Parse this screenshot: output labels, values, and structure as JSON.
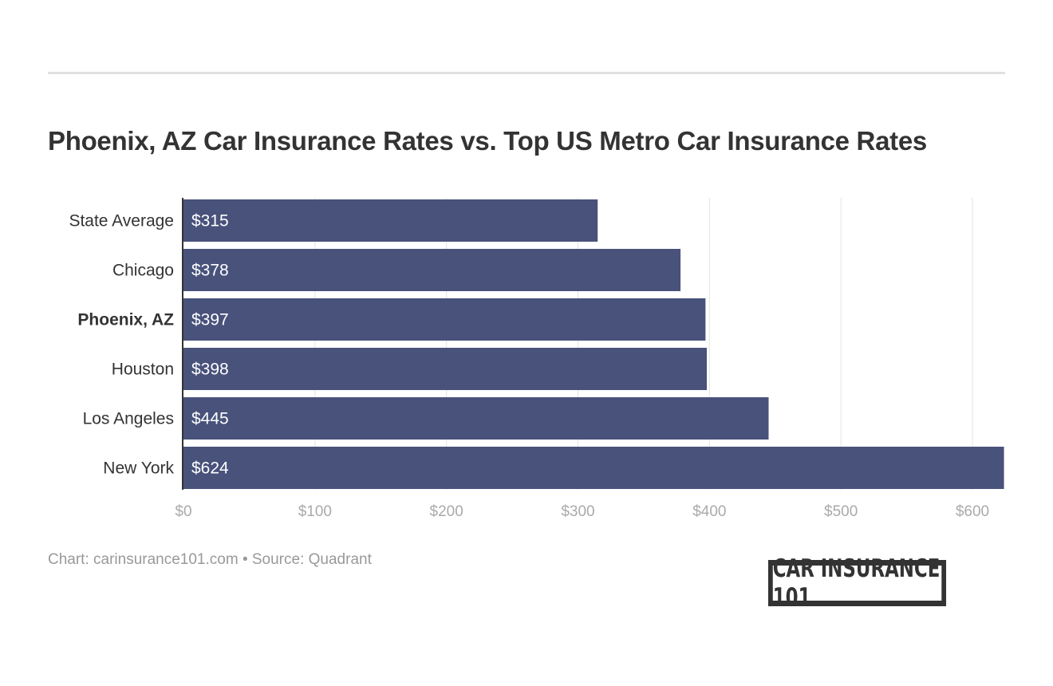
{
  "title": "Phoenix, AZ Car Insurance Rates vs. Top US Metro Car Insurance Rates",
  "footer": "Chart: carinsurance101.com • Source: Quadrant",
  "logo_text": "CAR INSURANCE 101",
  "colors": {
    "bar": "#48527b",
    "grid": "#e3e3e3",
    "axis": "#333333"
  },
  "chart_data": {
    "type": "bar",
    "orientation": "horizontal",
    "categories": [
      "State Average",
      "Chicago",
      "Phoenix, AZ",
      "Houston",
      "Los Angeles",
      "New York"
    ],
    "highlighted_category": "Phoenix, AZ",
    "values": [
      315,
      378,
      397,
      398,
      445,
      624
    ],
    "data_labels": [
      "$315",
      "$378",
      "$397",
      "$398",
      "$445",
      "$624"
    ],
    "xlim": [
      0,
      624
    ],
    "xticks": [
      0,
      100,
      200,
      300,
      400,
      500,
      600
    ],
    "xtick_labels": [
      "$0",
      "$100",
      "$200",
      "$300",
      "$400",
      "$500",
      "$600"
    ],
    "grid": true,
    "title": "Phoenix, AZ Car Insurance Rates vs. Top US Metro Car Insurance Rates"
  }
}
